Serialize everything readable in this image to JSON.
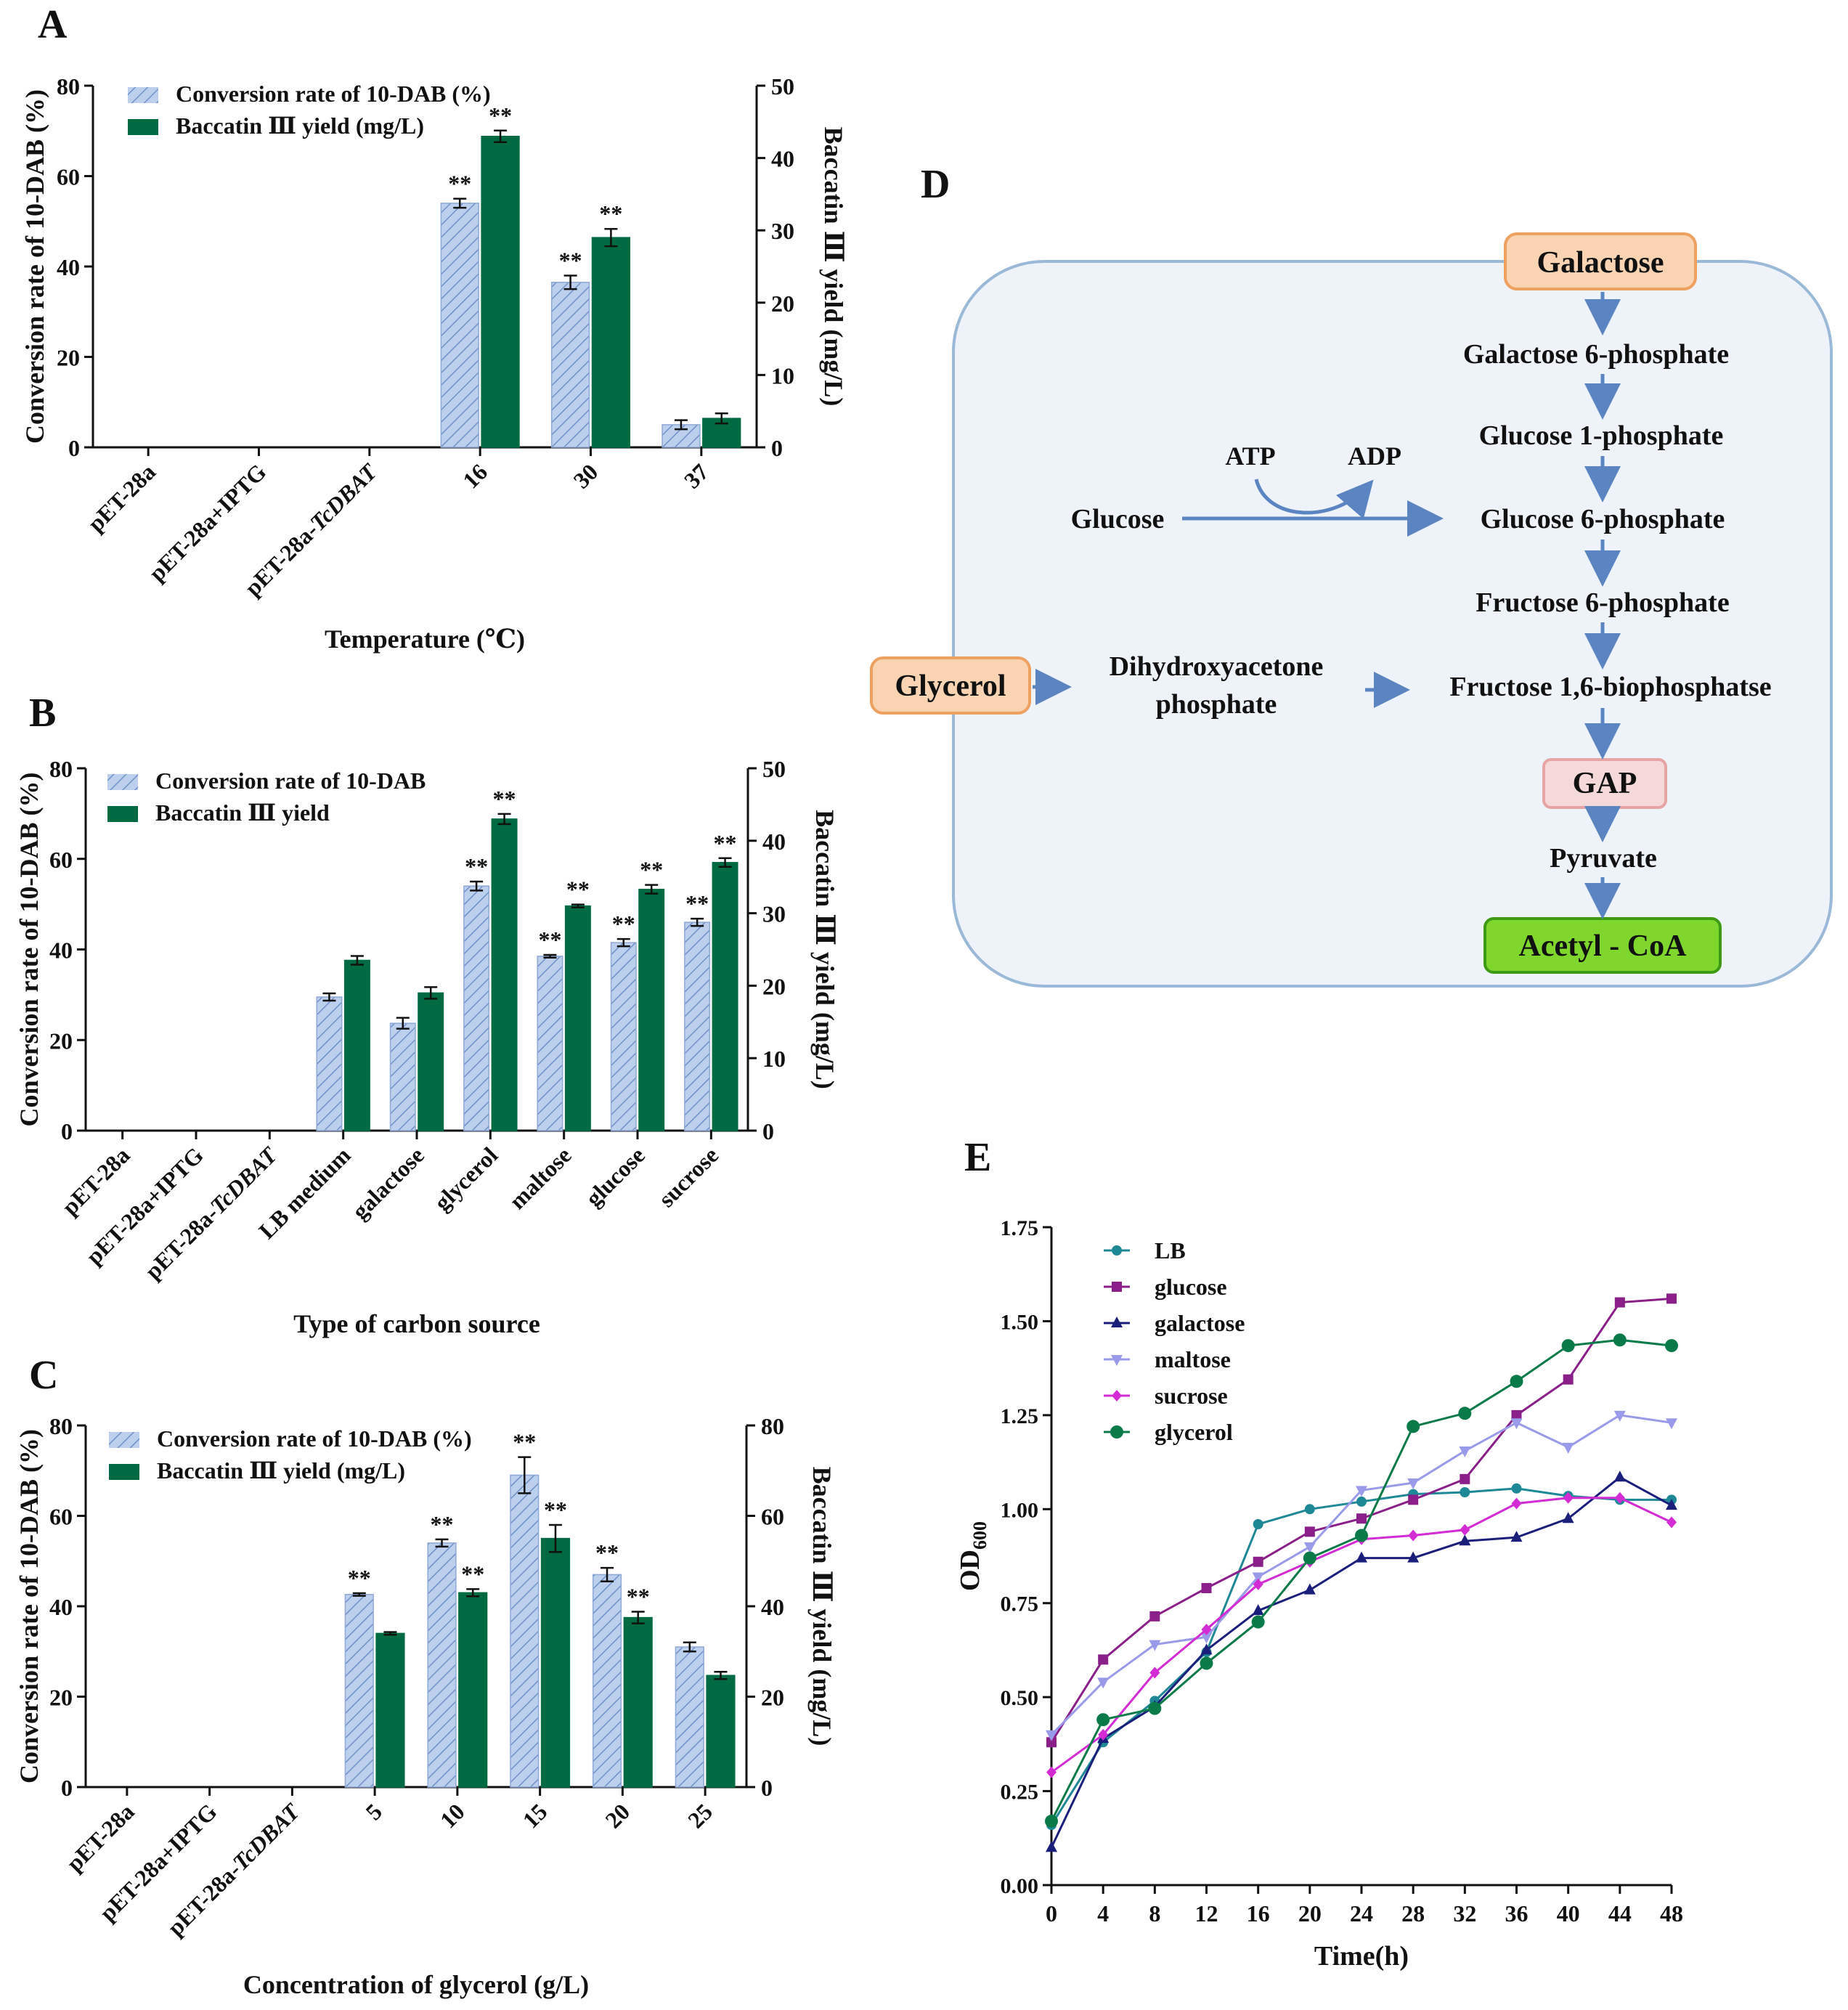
{
  "panels": {
    "a": "A",
    "b": "B",
    "c": "C",
    "d": "D",
    "e": "E"
  },
  "colors": {
    "conv": "#bcd0ee",
    "convStripe": "#7090c8",
    "yield": "#006b43",
    "axis": "#111111",
    "flowArrow": "#5b85c2",
    "cellFill": "#eef3fa",
    "cellStroke": "#9ab8d8",
    "orangeFill": "#fad3b3",
    "orangeStroke": "#eea061",
    "gapFill": "#f5d9d8",
    "gapStroke": "#e6a5a4",
    "acetylFill": "#7fd62c",
    "acetylStroke": "#3d9a12"
  },
  "chart_data": [
    {
      "id": "A",
      "type": "bar",
      "categories": [
        "pET-28a",
        "pET-28a+IPTG",
        "pET-28a-TcDBAT",
        "16",
        "30",
        "37"
      ],
      "italic_suffix": {
        "pET-28a-TcDBAT": "TcDBAT"
      },
      "series": [
        {
          "name": "Conversion rate of 10-DAB (%)",
          "axis": "left",
          "values": [
            0,
            0,
            0,
            54,
            36.5,
            5
          ],
          "errors": [
            0,
            0,
            0,
            1,
            1.5,
            1
          ],
          "stars": [
            "",
            "",
            "",
            "**",
            "**",
            ""
          ]
        },
        {
          "name": "Baccatin Ⅲ yield (mg/L)",
          "axis": "right",
          "values": [
            0,
            0,
            0,
            43,
            29,
            4
          ],
          "errors": [
            0,
            0,
            0,
            0.8,
            1.2,
            0.7
          ],
          "stars": [
            "",
            "",
            "",
            "**",
            "**",
            ""
          ]
        }
      ],
      "xlabel": "Temperature (℃)",
      "ylabel": "Conversion rate of 10-DAB (%)",
      "ylim": [
        0,
        80
      ],
      "yticks": [
        0,
        20,
        40,
        60,
        80
      ],
      "y2label": "Baccatin Ⅲ yield (mg/L)",
      "y2lim": [
        0,
        50
      ],
      "y2ticks": [
        0,
        10,
        20,
        30,
        40,
        50
      ],
      "legend": "top-left"
    },
    {
      "id": "B",
      "type": "bar",
      "categories": [
        "pET-28a",
        "pET-28a+IPTG",
        "pET-28a-TcDBAT",
        "LB medium",
        "galactose",
        "glycerol",
        "maltose",
        "glucose",
        "sucrose"
      ],
      "italic_suffix": {
        "pET-28a-TcDBAT": "TcDBAT"
      },
      "series": [
        {
          "name": "Conversion rate of 10-DAB",
          "axis": "left",
          "values": [
            0,
            0,
            0,
            29.5,
            23.7,
            54,
            38.5,
            41.5,
            46
          ],
          "errors": [
            0,
            0,
            0,
            0.8,
            1.2,
            1,
            0.3,
            0.8,
            0.8
          ],
          "stars": [
            "",
            "",
            "",
            "",
            "",
            "**",
            "**",
            "**",
            "**"
          ]
        },
        {
          "name": "Baccatin Ⅲ  yield",
          "axis": "right",
          "values": [
            0,
            0,
            0,
            23.5,
            19,
            43,
            31,
            33.3,
            37
          ],
          "errors": [
            0,
            0,
            0,
            0.6,
            0.8,
            0.7,
            0.2,
            0.6,
            0.6
          ],
          "stars": [
            "",
            "",
            "",
            "",
            "",
            "**",
            "**",
            "**",
            "**"
          ]
        }
      ],
      "xlabel": "Type of carbon source",
      "ylabel": "Conversion rate of 10-DAB (%)",
      "ylim": [
        0,
        80
      ],
      "yticks": [
        0,
        20,
        40,
        60,
        80
      ],
      "y2label": "Baccatin Ⅲ yield (mg/L)",
      "y2lim": [
        0,
        50
      ],
      "y2ticks": [
        0,
        10,
        20,
        30,
        40,
        50
      ],
      "legend": "top-left"
    },
    {
      "id": "C",
      "type": "bar",
      "categories": [
        "pET-28a",
        "pET-28a+IPTG",
        "pET-28a-TcDBAT",
        "5",
        "10",
        "15",
        "20",
        "25"
      ],
      "italic_suffix": {
        "pET-28a-TcDBAT": "TcDBAT"
      },
      "series": [
        {
          "name": "Conversion rate of 10-DAB (%)",
          "axis": "left",
          "values": [
            0,
            0,
            0,
            42.6,
            54,
            69,
            47,
            31
          ],
          "errors": [
            0,
            0,
            0,
            0.3,
            0.8,
            4,
            1.5,
            1
          ],
          "stars": [
            "",
            "",
            "",
            "**",
            "**",
            "**",
            "**",
            ""
          ]
        },
        {
          "name": "Baccatin Ⅲ  yield (mg/L)",
          "axis": "right",
          "values": [
            0,
            0,
            0,
            34,
            43,
            55,
            37.5,
            24.7
          ],
          "errors": [
            0,
            0,
            0,
            0.3,
            0.8,
            3,
            1.3,
            0.8
          ],
          "stars": [
            "",
            "",
            "",
            "",
            "**",
            "**",
            "**",
            ""
          ]
        }
      ],
      "xlabel": "Concentration of glycerol (g/L)",
      "ylabel": "Conversion rate of 10-DAB (%)",
      "ylim": [
        0,
        80
      ],
      "yticks": [
        0,
        20,
        40,
        60,
        80
      ],
      "y2label": "Baccatin Ⅲ yield (mg/L)",
      "y2lim": [
        0,
        80
      ],
      "y2ticks": [
        0,
        20,
        40,
        60,
        80
      ],
      "legend": "top-left"
    },
    {
      "id": "E",
      "type": "line",
      "x": [
        0,
        4,
        8,
        12,
        16,
        20,
        24,
        28,
        32,
        36,
        40,
        44,
        48
      ],
      "series": [
        {
          "name": "LB",
          "color": "#1e8896",
          "marker": "circle",
          "values": [
            0.16,
            0.38,
            0.49,
            0.62,
            0.96,
            1.0,
            1.02,
            1.04,
            1.045,
            1.055,
            1.035,
            1.025,
            1.025
          ]
        },
        {
          "name": "glucose",
          "color": "#8a1f8a",
          "marker": "square",
          "values": [
            0.38,
            0.6,
            0.715,
            0.79,
            0.86,
            0.94,
            0.975,
            1.025,
            1.08,
            1.25,
            1.345,
            1.55,
            1.56
          ]
        },
        {
          "name": "galactose",
          "color": "#1b1f7c",
          "marker": "triangle-up",
          "values": [
            0.1,
            0.39,
            0.475,
            0.625,
            0.73,
            0.785,
            0.87,
            0.87,
            0.915,
            0.925,
            0.975,
            1.085,
            1.01
          ]
        },
        {
          "name": "maltose",
          "color": "#9a9aea",
          "marker": "triangle-down",
          "values": [
            0.4,
            0.54,
            0.64,
            0.66,
            0.82,
            0.9,
            1.05,
            1.07,
            1.155,
            1.23,
            1.165,
            1.25,
            1.23
          ]
        },
        {
          "name": "sucrose",
          "color": "#d42cd4",
          "marker": "diamond",
          "values": [
            0.3,
            0.4,
            0.565,
            0.68,
            0.8,
            0.86,
            0.92,
            0.93,
            0.945,
            1.015,
            1.03,
            1.03,
            0.965
          ]
        },
        {
          "name": "glycerol",
          "color": "#0a7a48",
          "marker": "circle-large",
          "values": [
            0.17,
            0.44,
            0.47,
            0.59,
            0.7,
            0.87,
            0.93,
            1.22,
            1.255,
            1.34,
            1.435,
            1.45,
            1.435
          ]
        }
      ],
      "xlabel": "Time(h)",
      "ylabel": "OD600",
      "ylabel_main": "OD",
      "ylabel_sub": "600",
      "xlim": [
        0,
        48
      ],
      "xticks": [
        0,
        4,
        8,
        12,
        16,
        20,
        24,
        28,
        32,
        36,
        40,
        44,
        48
      ],
      "ylim": [
        0,
        1.75
      ],
      "yticks": [
        "0.00",
        "0.25",
        "0.50",
        "0.75",
        "1.00",
        "1.25",
        "1.50",
        "1.75"
      ],
      "legend": "top-left"
    }
  ],
  "pathway": {
    "galactose": "Galactose",
    "galactose_6p": "Galactose 6-phosphate",
    "glucose_1p": "Glucose 1-phosphate",
    "atp": "ATP",
    "adp": "ADP",
    "glucose": "Glucose",
    "glucose_6p": "Glucose 6-phosphate",
    "fructose_6p": "Fructose 6-phosphate",
    "glycerol": "Glycerol",
    "dhap_line1": "Dihydroxyacetone",
    "dhap_line2": "phosphate",
    "fructose_16bp": "Fructose 1,6-biophosphatse",
    "gap": "GAP",
    "pyruvate": "Pyruvate",
    "acetyl_coa": "Acetyl - CoA"
  }
}
